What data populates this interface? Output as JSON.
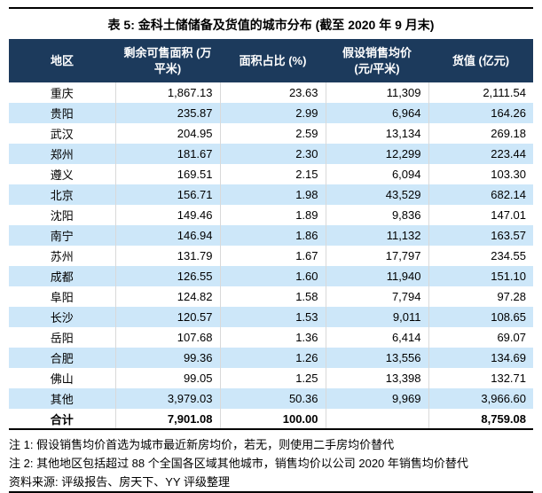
{
  "title": "表 5: 金科土储储备及货值的城市分布 (截至 2020 年 9 月末)",
  "table": {
    "columns": {
      "region": "地区",
      "area": "剩余可售面积 (万\n平米)",
      "share": "面积占比 (%)",
      "price": "假设销售均价\n(元/平米)",
      "value": "货值 (亿元)"
    },
    "rows": [
      {
        "region": "重庆",
        "area": "1,867.13",
        "share": "23.63",
        "price": "11,309",
        "value": "2,111.54"
      },
      {
        "region": "贵阳",
        "area": "235.87",
        "share": "2.99",
        "price": "6,964",
        "value": "164.26"
      },
      {
        "region": "武汉",
        "area": "204.95",
        "share": "2.59",
        "price": "13,134",
        "value": "269.18"
      },
      {
        "region": "郑州",
        "area": "181.67",
        "share": "2.30",
        "price": "12,299",
        "value": "223.44"
      },
      {
        "region": "遵义",
        "area": "169.51",
        "share": "2.15",
        "price": "6,094",
        "value": "103.30"
      },
      {
        "region": "北京",
        "area": "156.71",
        "share": "1.98",
        "price": "43,529",
        "value": "682.14"
      },
      {
        "region": "沈阳",
        "area": "149.46",
        "share": "1.89",
        "price": "9,836",
        "value": "147.01"
      },
      {
        "region": "南宁",
        "area": "146.94",
        "share": "1.86",
        "price": "11,132",
        "value": "163.57"
      },
      {
        "region": "苏州",
        "area": "131.79",
        "share": "1.67",
        "price": "17,797",
        "value": "234.55"
      },
      {
        "region": "成都",
        "area": "126.55",
        "share": "1.60",
        "price": "11,940",
        "value": "151.10"
      },
      {
        "region": "阜阳",
        "area": "124.82",
        "share": "1.58",
        "price": "7,794",
        "value": "97.28"
      },
      {
        "region": "长沙",
        "area": "120.57",
        "share": "1.53",
        "price": "9,011",
        "value": "108.65"
      },
      {
        "region": "岳阳",
        "area": "107.68",
        "share": "1.36",
        "price": "6,414",
        "value": "69.07"
      },
      {
        "region": "合肥",
        "area": "99.36",
        "share": "1.26",
        "price": "13,556",
        "value": "134.69"
      },
      {
        "region": "佛山",
        "area": "99.05",
        "share": "1.25",
        "price": "13,398",
        "value": "132.71"
      },
      {
        "region": "其他",
        "area": "3,979.03",
        "share": "50.36",
        "price": "9,969",
        "value": "3,966.60"
      }
    ],
    "total": {
      "region": "合计",
      "area": "7,901.08",
      "share": "100.00",
      "price": "",
      "value": "8,759.08"
    }
  },
  "notes": [
    "注 1: 假设销售均价首选为城市最近新房均价，若无，则使用二手房均价替代",
    "注 2: 其他地区包括超过 88 个全国各区域其他城市，销售均价以公司 2020 年销售均价替代"
  ],
  "source": "资料来源: 评级报告、房天下、YY 评级整理",
  "colors": {
    "header_bg": "#1C3A5C",
    "header_text": "#FFFFFF",
    "stripe_bg": "#CDE7F9",
    "cell_border": "#D9D9D9",
    "rule": "#000000"
  }
}
